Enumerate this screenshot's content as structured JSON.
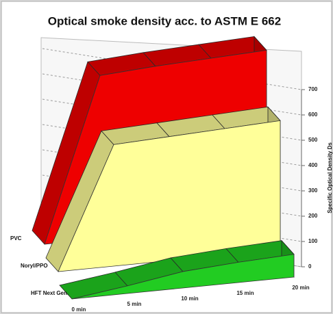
{
  "chart_data": {
    "type": "area3d",
    "title": "Optical smoke density acc. to ASTM E 662",
    "y_label": "Specific Optical Density Ds",
    "categories": [
      "0 min",
      "5 min",
      "10 min",
      "15 min",
      "20 min"
    ],
    "series": [
      {
        "name": "PVC",
        "color": "#ee0000",
        "values": [
          0,
          645,
          660,
          670,
          680
        ]
      },
      {
        "name": "Noryl/PPO",
        "color": "#ffff99",
        "values": [
          0,
          480,
          490,
          500,
          510
        ]
      },
      {
        "name": "HFT Next Gen.",
        "color": "#22cc22",
        "values": [
          0,
          30,
          65,
          80,
          90
        ]
      }
    ],
    "ylim": [
      0,
      700
    ],
    "yticks": [
      0,
      100,
      200,
      300,
      400,
      500,
      600,
      700
    ],
    "grid": true
  }
}
